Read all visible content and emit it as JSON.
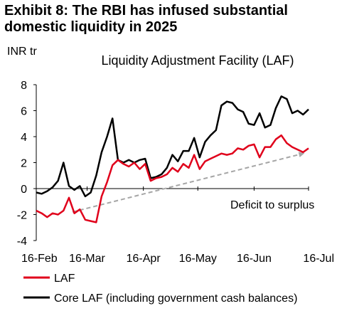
{
  "exhibit_title": {
    "line1": "Exhibit 8: The RBI has infused substantial",
    "line2": "domestic liquidity in 2025"
  },
  "colors": {
    "laf": "#e0001b",
    "core_laf": "#000000",
    "arrow": "#a6a6a6"
  },
  "chart_data": {
    "type": "line",
    "title": "Liquidity Adjustment Facility (LAF)",
    "ylabel": "INR tr",
    "xlabel": "",
    "ylim": [
      -4,
      8
    ],
    "yticks": [
      -4,
      -2,
      0,
      2,
      4,
      6,
      8
    ],
    "xticks": [
      "16-Feb",
      "16-Mar",
      "16-Apr",
      "16-May",
      "16-Jun",
      "16-Jul"
    ],
    "x_unit": "days from 16-Feb",
    "grid": false,
    "legend_position": "bottom",
    "annotation": "Deficit to surplus",
    "series": [
      {
        "name": "LAF",
        "x": [
          0,
          3,
          6,
          9,
          12,
          15,
          18,
          21,
          24,
          27,
          30,
          33,
          36,
          39,
          42,
          45,
          48,
          51,
          54,
          57,
          60,
          63,
          66,
          69,
          72,
          75,
          78,
          81,
          84,
          87,
          90,
          93,
          96,
          99,
          102,
          105,
          108,
          111,
          114,
          117,
          120,
          123,
          126,
          129,
          132,
          135,
          138,
          141,
          144,
          147,
          150
        ],
        "values": [
          -1.7,
          -1.9,
          -2.2,
          -1.9,
          -2.0,
          -1.7,
          -0.7,
          -1.9,
          -1.6,
          -2.4,
          -2.5,
          -2.6,
          -0.6,
          0.5,
          1.8,
          2.2,
          1.9,
          1.7,
          2.0,
          1.5,
          1.9,
          0.6,
          0.8,
          0.9,
          1.1,
          1.6,
          1.3,
          1.9,
          1.6,
          2.6,
          1.5,
          2.1,
          2.3,
          2.5,
          2.7,
          2.6,
          2.7,
          3.1,
          3.0,
          3.3,
          3.4,
          2.4,
          3.2,
          3.2,
          3.8,
          4.1,
          3.5,
          3.2,
          3.0,
          2.8,
          3.1
        ]
      },
      {
        "name": "Core LAF (including government cash balances)",
        "x": [
          0,
          3,
          6,
          9,
          12,
          15,
          18,
          21,
          24,
          27,
          30,
          33,
          36,
          39,
          42,
          45,
          48,
          51,
          54,
          57,
          60,
          63,
          66,
          69,
          72,
          75,
          78,
          81,
          84,
          87,
          90,
          93,
          96,
          99,
          102,
          105,
          108,
          111,
          114,
          117,
          120,
          123,
          126,
          129,
          132,
          135,
          138,
          141,
          144,
          147,
          150
        ],
        "values": [
          -0.3,
          -0.4,
          -0.2,
          0.1,
          0.6,
          2.0,
          0.2,
          -0.1,
          0.2,
          -0.6,
          -0.3,
          1.0,
          2.8,
          4.0,
          5.4,
          2.2,
          2.0,
          2.2,
          2.0,
          2.2,
          2.3,
          0.8,
          0.9,
          1.1,
          1.6,
          2.6,
          2.1,
          2.9,
          2.9,
          3.9,
          2.4,
          3.6,
          4.1,
          4.5,
          6.4,
          6.7,
          6.6,
          6.1,
          5.9,
          5.0,
          4.9,
          5.8,
          4.7,
          4.9,
          6.2,
          7.1,
          6.9,
          5.8,
          6.0,
          5.7,
          6.1
        ]
      }
    ]
  }
}
